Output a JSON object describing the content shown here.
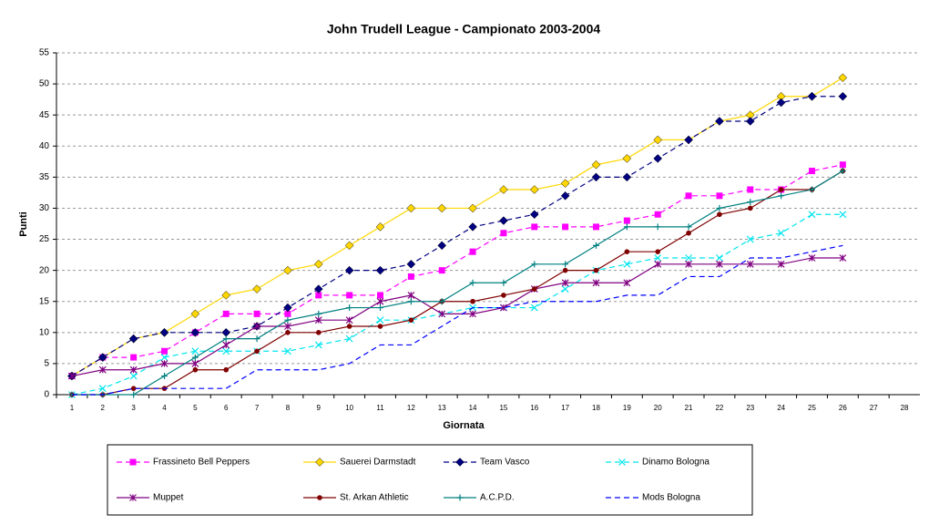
{
  "chart_data": {
    "type": "line",
    "title": "John Trudell League - Campionato 2003-2004",
    "x_label": "Giornata",
    "y_label": "Punti",
    "categories": [
      1,
      2,
      3,
      4,
      5,
      6,
      7,
      8,
      9,
      10,
      11,
      12,
      13,
      14,
      15,
      16,
      17,
      18,
      19,
      20,
      21,
      22,
      23,
      24,
      25,
      26,
      27,
      28
    ],
    "ylim": [
      0,
      55
    ],
    "yticks": [
      0,
      5,
      10,
      15,
      20,
      25,
      30,
      35,
      40,
      45,
      50,
      55
    ],
    "grid": true,
    "series": [
      {
        "name": "Frassineto Bell Peppers",
        "color": "#ff00ff",
        "dash": true,
        "marker": "square",
        "values": [
          3,
          6,
          6,
          7,
          10,
          13,
          13,
          13,
          16,
          16,
          16,
          19,
          20,
          23,
          26,
          27,
          27,
          27,
          28,
          29,
          32,
          32,
          33,
          33,
          36,
          37,
          null,
          null
        ]
      },
      {
        "name": "Sauerei Darmstadt",
        "color": "#ffd700",
        "dash": false,
        "marker": "diamond",
        "values": [
          3,
          6,
          9,
          10,
          13,
          16,
          17,
          20,
          21,
          24,
          27,
          30,
          30,
          30,
          33,
          33,
          34,
          37,
          38,
          41,
          41,
          44,
          45,
          48,
          48,
          51,
          null,
          null
        ]
      },
      {
        "name": "Team Vasco",
        "color": "#000080",
        "dash": true,
        "marker": "diamond",
        "values": [
          3,
          6,
          9,
          10,
          10,
          10,
          11,
          14,
          17,
          20,
          20,
          21,
          24,
          27,
          28,
          29,
          32,
          35,
          35,
          38,
          41,
          44,
          44,
          47,
          48,
          48,
          null,
          null
        ]
      },
      {
        "name": "Dinamo Bologna",
        "color": "#00e5ee",
        "dash": true,
        "marker": "x",
        "values": [
          0,
          1,
          3,
          6,
          7,
          7,
          7,
          7,
          8,
          9,
          12,
          12,
          13,
          14,
          14,
          14,
          17,
          20,
          21,
          22,
          22,
          22,
          25,
          26,
          29,
          29,
          null,
          null
        ]
      },
      {
        "name": "Muppet",
        "color": "#800080",
        "dash": false,
        "marker": "asterisk",
        "values": [
          3,
          4,
          4,
          5,
          5,
          8,
          11,
          11,
          12,
          12,
          15,
          16,
          13,
          13,
          14,
          17,
          18,
          18,
          18,
          21,
          21,
          21,
          21,
          21,
          22,
          22,
          null,
          null
        ]
      },
      {
        "name": "St. Arkan Athletic",
        "color": "#800000",
        "dash": false,
        "marker": "circle",
        "values": [
          0,
          0,
          1,
          1,
          4,
          4,
          7,
          10,
          10,
          11,
          11,
          12,
          15,
          15,
          16,
          17,
          20,
          20,
          23,
          23,
          26,
          29,
          30,
          33,
          33,
          36,
          null,
          null
        ]
      },
      {
        "name": "A.C.P.D.",
        "color": "#008080",
        "dash": false,
        "marker": "plus",
        "values": [
          0,
          0,
          0,
          3,
          6,
          9,
          9,
          12,
          13,
          14,
          14,
          15,
          15,
          18,
          18,
          21,
          21,
          24,
          27,
          27,
          27,
          30,
          31,
          32,
          33,
          36,
          null,
          null
        ]
      },
      {
        "name": "Mods Bologna",
        "color": "#0000ff",
        "dash": true,
        "marker": "none",
        "values": [
          0,
          0,
          1,
          1,
          1,
          1,
          4,
          4,
          4,
          5,
          8,
          8,
          11,
          14,
          14,
          15,
          15,
          15,
          16,
          16,
          19,
          19,
          22,
          22,
          23,
          24,
          null,
          null
        ]
      }
    ]
  }
}
